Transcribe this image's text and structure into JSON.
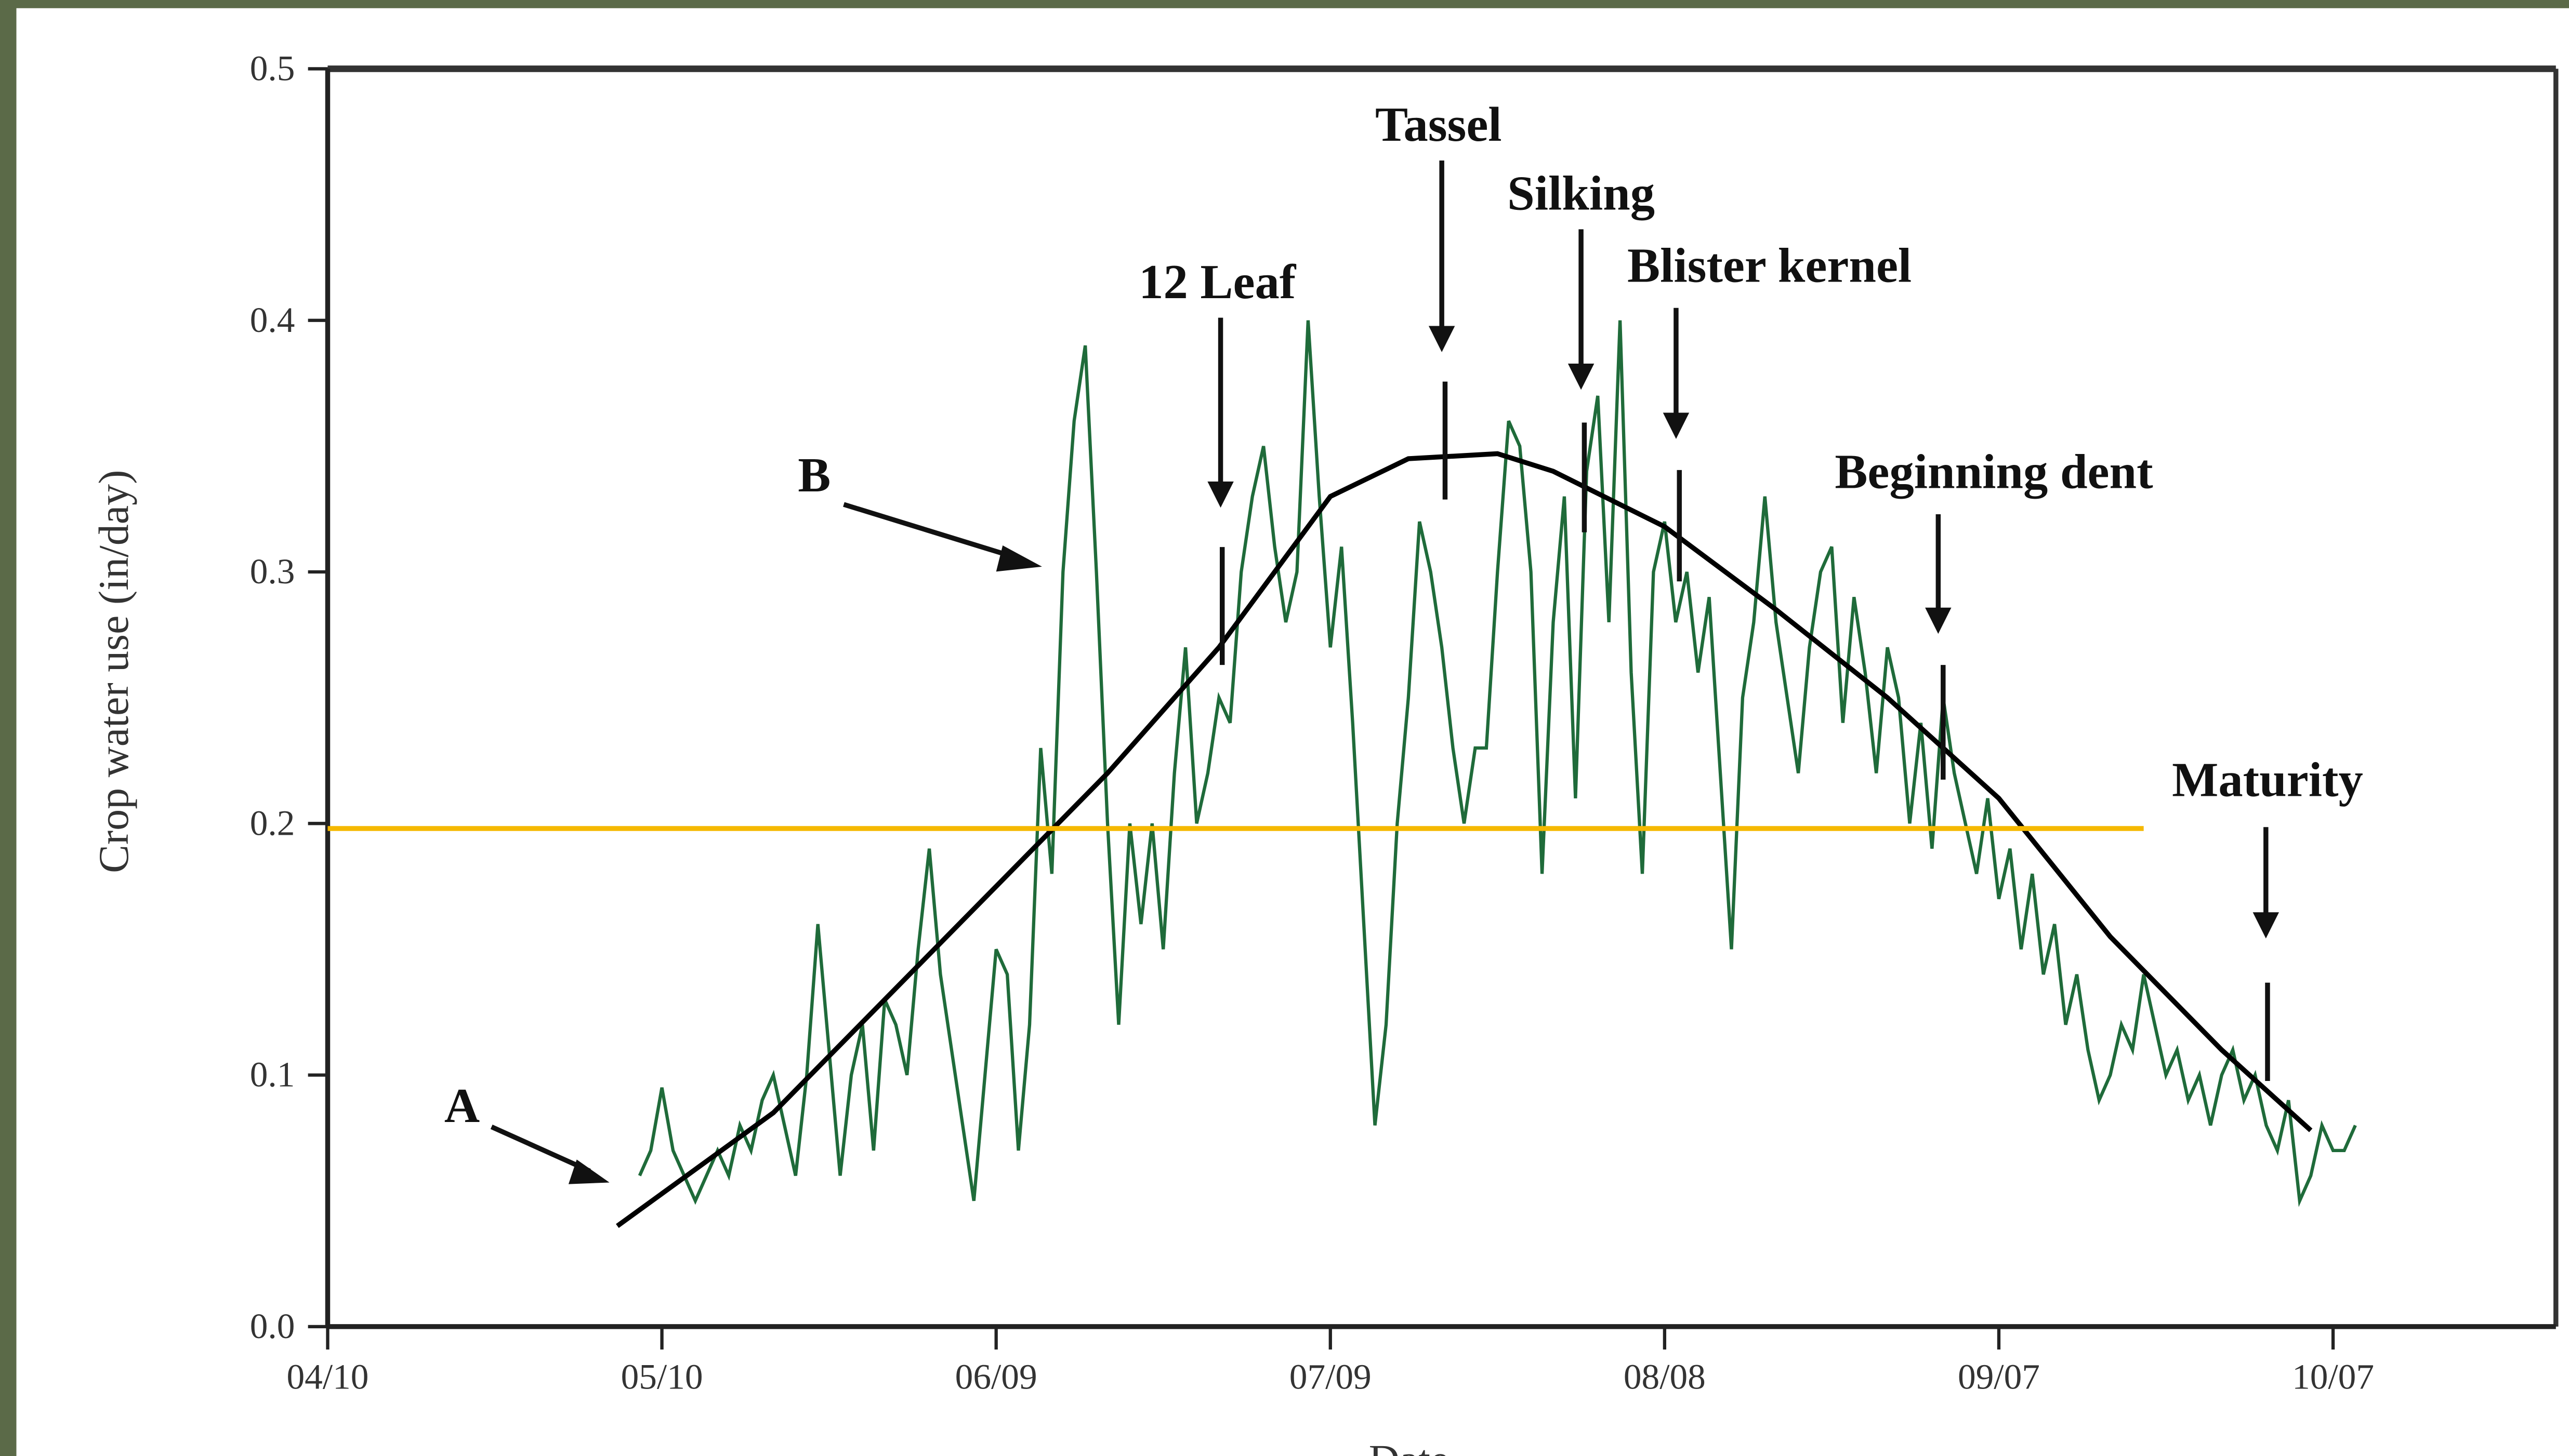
{
  "chart_data": {
    "type": "line",
    "y_label": "Crop water use (in/day)",
    "x_label": "Date",
    "annotations": [
      "Tassel",
      "Silking",
      "Blister kernel",
      "12 Leaf",
      "Beginning dent",
      "Maturity",
      "A",
      "B"
    ],
    "xlim": [
      0,
      200
    ],
    "xticks": [
      {
        "value": 0,
        "label": "04/10"
      },
      {
        "value": 30,
        "label": "05/10"
      },
      {
        "value": 60,
        "label": "06/09"
      },
      {
        "value": 90,
        "label": "07/09"
      },
      {
        "value": 120,
        "label": "08/08"
      },
      {
        "value": 150,
        "label": "09/07"
      },
      {
        "value": 180,
        "label": "10/07"
      }
    ],
    "ylim": [
      0,
      0.5
    ],
    "yticks": [
      {
        "value": 0,
        "label": "0.0"
      },
      0.1,
      0.2,
      0.3,
      0.4,
      0.5
    ],
    "series": [
      {
        "color": "#1f6b3a",
        "x": [
          28,
          29,
          30,
          31,
          32,
          33,
          34,
          35,
          36,
          37,
          38,
          39,
          40,
          41,
          42,
          43,
          44,
          45,
          46,
          47,
          48,
          49,
          50,
          51,
          52,
          53,
          54,
          55,
          56,
          57,
          58,
          59,
          60,
          61,
          62,
          63,
          64,
          65,
          66,
          67,
          68,
          69,
          70,
          71,
          72,
          73,
          74,
          75,
          76,
          77,
          78,
          79,
          80,
          81,
          82,
          83,
          84,
          85,
          86,
          87,
          88,
          89,
          90,
          91,
          92,
          93,
          94,
          95,
          96,
          97,
          98,
          99,
          100,
          101,
          102,
          103,
          104,
          105,
          106,
          107,
          108,
          109,
          110,
          111,
          112,
          113,
          114,
          115,
          116,
          117,
          118,
          119,
          120,
          121,
          122,
          123,
          124,
          125,
          126,
          127,
          128,
          129,
          130,
          131,
          132,
          133,
          134,
          135,
          136,
          137,
          138,
          139,
          140,
          141,
          142,
          143,
          144,
          145,
          146,
          147,
          148,
          149,
          150,
          151,
          152,
          153,
          154,
          155,
          156,
          157,
          158,
          159,
          160,
          161,
          162,
          163,
          164,
          165,
          166,
          167,
          168,
          169,
          170,
          171,
          172,
          173,
          174,
          175,
          176,
          177,
          178,
          179,
          180,
          181,
          182
        ],
        "values": [
          0.06,
          0.07,
          0.095,
          0.07,
          0.06,
          0.05,
          0.06,
          0.07,
          0.06,
          0.08,
          0.07,
          0.09,
          0.1,
          0.08,
          0.06,
          0.1,
          0.16,
          0.11,
          0.06,
          0.1,
          0.12,
          0.07,
          0.13,
          0.12,
          0.1,
          0.15,
          0.19,
          0.14,
          0.11,
          0.08,
          0.05,
          0.1,
          0.15,
          0.14,
          0.07,
          0.12,
          0.23,
          0.18,
          0.3,
          0.36,
          0.39,
          0.3,
          0.2,
          0.12,
          0.2,
          0.16,
          0.2,
          0.15,
          0.22,
          0.27,
          0.2,
          0.22,
          0.25,
          0.24,
          0.3,
          0.33,
          0.35,
          0.31,
          0.28,
          0.3,
          0.4,
          0.33,
          0.27,
          0.31,
          0.24,
          0.16,
          0.08,
          0.12,
          0.2,
          0.25,
          0.32,
          0.3,
          0.27,
          0.23,
          0.2,
          0.23,
          0.23,
          0.3,
          0.36,
          0.35,
          0.3,
          0.18,
          0.28,
          0.33,
          0.21,
          0.34,
          0.37,
          0.28,
          0.4,
          0.26,
          0.18,
          0.3,
          0.32,
          0.28,
          0.3,
          0.26,
          0.29,
          0.22,
          0.15,
          0.25,
          0.28,
          0.33,
          0.28,
          0.25,
          0.22,
          0.27,
          0.3,
          0.31,
          0.24,
          0.29,
          0.26,
          0.22,
          0.27,
          0.25,
          0.2,
          0.24,
          0.19,
          0.25,
          0.22,
          0.2,
          0.18,
          0.21,
          0.17,
          0.19,
          0.15,
          0.18,
          0.14,
          0.16,
          0.12,
          0.14,
          0.11,
          0.09,
          0.1,
          0.12,
          0.11,
          0.14,
          0.12,
          0.1,
          0.11,
          0.09,
          0.1,
          0.08,
          0.1,
          0.11,
          0.09,
          0.1,
          0.08,
          0.07,
          0.09,
          0.05,
          0.06,
          0.08,
          0.07,
          0.07,
          0.08
        ]
      },
      {
        "color": "#000000",
        "x": [
          26,
          40,
          60,
          70,
          80,
          90,
          97,
          105,
          110,
          120,
          130,
          140,
          150,
          160,
          170,
          178
        ],
        "values": [
          0.04,
          0.085,
          0.175,
          0.22,
          0.27,
          0.33,
          0.345,
          0.347,
          0.34,
          0.318,
          0.285,
          0.25,
          0.21,
          0.155,
          0.11,
          0.078
        ]
      },
      {
        "color": "#f5b800",
        "x": [
          0,
          163
        ],
        "values": [
          0.198,
          0.198
        ]
      }
    ]
  }
}
